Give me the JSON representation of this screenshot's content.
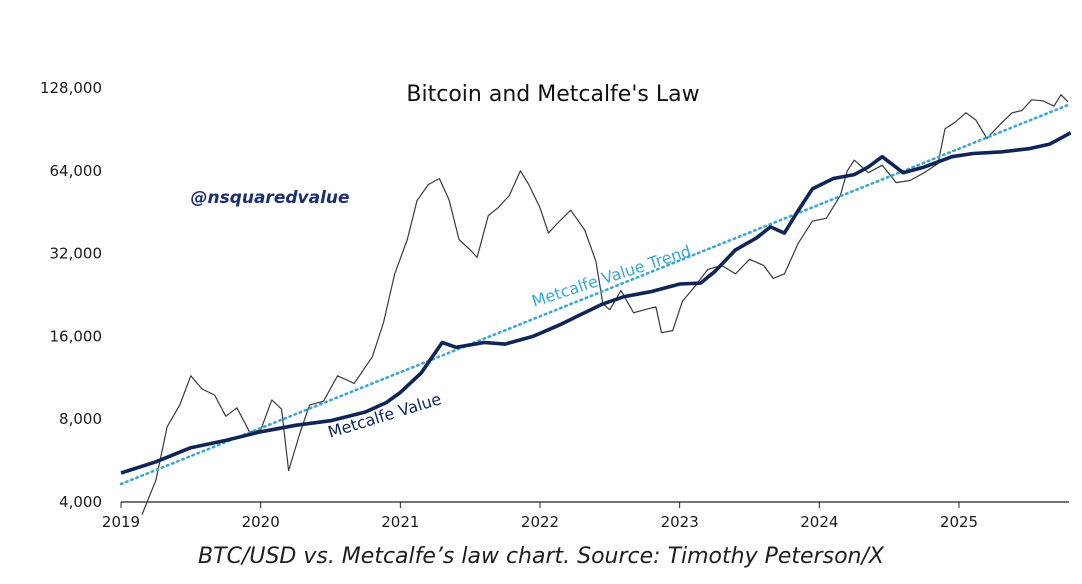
{
  "chart_data": {
    "type": "line",
    "title": "Bitcoin and Metcalfe's Law",
    "watermark": "@nsquaredvalue",
    "caption": "BTC/USD vs. Metcalfe’s law chart. Source: Timothy Peterson/X",
    "y_scale": "log2",
    "ylim": [
      4000,
      140000
    ],
    "yticks": [
      {
        "value": 4000,
        "label": "4,000"
      },
      {
        "value": 8000,
        "label": "8,000"
      },
      {
        "value": 16000,
        "label": "16,000"
      },
      {
        "value": 32000,
        "label": "32,000"
      },
      {
        "value": 64000,
        "label": "64,000"
      },
      {
        "value": 128000,
        "label": "128,000"
      }
    ],
    "xlim": [
      2019.0,
      2025.8
    ],
    "xticks": [
      {
        "value": 2019,
        "label": "2019"
      },
      {
        "value": 2020,
        "label": "2020"
      },
      {
        "value": 2021,
        "label": "2021"
      },
      {
        "value": 2022,
        "label": "2022"
      },
      {
        "value": 2023,
        "label": "2023"
      },
      {
        "value": 2024,
        "label": "2024"
      },
      {
        "value": 2025,
        "label": "2025"
      }
    ],
    "grid": false,
    "colors": {
      "btc": "#3a3a3a",
      "metcalfe": "#0f2558",
      "trend": "#3aa6d8",
      "watermark": "#1c2f6e"
    },
    "series": [
      {
        "key": "btc",
        "style": "thin-line",
        "points": [
          [
            2019.15,
            3600
          ],
          [
            2019.25,
            4800
          ],
          [
            2019.33,
            7500
          ],
          [
            2019.42,
            9000
          ],
          [
            2019.5,
            11500
          ],
          [
            2019.58,
            10300
          ],
          [
            2019.67,
            9800
          ],
          [
            2019.75,
            8200
          ],
          [
            2019.83,
            8800
          ],
          [
            2019.92,
            7200
          ],
          [
            2020.0,
            7300
          ],
          [
            2020.08,
            9400
          ],
          [
            2020.15,
            8700
          ],
          [
            2020.2,
            5200
          ],
          [
            2020.28,
            7100
          ],
          [
            2020.35,
            9000
          ],
          [
            2020.45,
            9300
          ],
          [
            2020.55,
            11500
          ],
          [
            2020.67,
            10800
          ],
          [
            2020.8,
            13500
          ],
          [
            2020.88,
            18000
          ],
          [
            2020.96,
            27000
          ],
          [
            2021.05,
            36000
          ],
          [
            2021.12,
            50000
          ],
          [
            2021.2,
            57000
          ],
          [
            2021.28,
            60000
          ],
          [
            2021.35,
            50000
          ],
          [
            2021.42,
            36000
          ],
          [
            2021.5,
            33000
          ],
          [
            2021.55,
            31000
          ],
          [
            2021.63,
            44000
          ],
          [
            2021.7,
            47000
          ],
          [
            2021.78,
            52000
          ],
          [
            2021.86,
            64000
          ],
          [
            2021.92,
            57000
          ],
          [
            2022.0,
            47000
          ],
          [
            2022.06,
            38000
          ],
          [
            2022.12,
            41000
          ],
          [
            2022.22,
            46000
          ],
          [
            2022.32,
            39000
          ],
          [
            2022.4,
            30000
          ],
          [
            2022.45,
            21000
          ],
          [
            2022.5,
            20000
          ],
          [
            2022.58,
            23500
          ],
          [
            2022.67,
            19500
          ],
          [
            2022.75,
            20000
          ],
          [
            2022.83,
            20500
          ],
          [
            2022.87,
            16500
          ],
          [
            2022.95,
            16800
          ],
          [
            2023.02,
            21500
          ],
          [
            2023.1,
            24000
          ],
          [
            2023.2,
            28000
          ],
          [
            2023.3,
            29000
          ],
          [
            2023.4,
            27000
          ],
          [
            2023.5,
            30500
          ],
          [
            2023.6,
            29000
          ],
          [
            2023.67,
            26000
          ],
          [
            2023.75,
            27000
          ],
          [
            2023.85,
            35000
          ],
          [
            2023.95,
            42000
          ],
          [
            2024.05,
            43000
          ],
          [
            2024.15,
            52000
          ],
          [
            2024.2,
            64000
          ],
          [
            2024.25,
            70000
          ],
          [
            2024.35,
            63000
          ],
          [
            2024.45,
            67000
          ],
          [
            2024.55,
            58000
          ],
          [
            2024.65,
            59000
          ],
          [
            2024.75,
            63000
          ],
          [
            2024.85,
            68000
          ],
          [
            2024.9,
            91000
          ],
          [
            2024.97,
            96000
          ],
          [
            2025.05,
            104000
          ],
          [
            2025.12,
            98000
          ],
          [
            2025.2,
            84000
          ],
          [
            2025.3,
            95000
          ],
          [
            2025.38,
            104000
          ],
          [
            2025.45,
            106000
          ],
          [
            2025.52,
            116000
          ],
          [
            2025.6,
            115000
          ],
          [
            2025.68,
            110000
          ],
          [
            2025.73,
            121000
          ],
          [
            2025.78,
            114000
          ]
        ]
      },
      {
        "key": "metcalfe",
        "name": "Metcalfe Value",
        "style": "thick-line",
        "points": [
          [
            2019.0,
            5100
          ],
          [
            2019.25,
            5600
          ],
          [
            2019.5,
            6300
          ],
          [
            2019.75,
            6700
          ],
          [
            2020.0,
            7200
          ],
          [
            2020.25,
            7600
          ],
          [
            2020.5,
            7900
          ],
          [
            2020.75,
            8500
          ],
          [
            2020.9,
            9200
          ],
          [
            2021.0,
            10000
          ],
          [
            2021.15,
            11800
          ],
          [
            2021.3,
            15200
          ],
          [
            2021.4,
            14600
          ],
          [
            2021.6,
            15200
          ],
          [
            2021.75,
            15000
          ],
          [
            2021.95,
            16000
          ],
          [
            2022.15,
            17700
          ],
          [
            2022.3,
            19300
          ],
          [
            2022.45,
            21000
          ],
          [
            2022.6,
            22300
          ],
          [
            2022.8,
            23300
          ],
          [
            2023.0,
            24800
          ],
          [
            2023.15,
            25000
          ],
          [
            2023.25,
            27500
          ],
          [
            2023.4,
            33000
          ],
          [
            2023.55,
            36500
          ],
          [
            2023.65,
            40000
          ],
          [
            2023.75,
            38000
          ],
          [
            2023.85,
            46000
          ],
          [
            2023.95,
            55000
          ],
          [
            2024.1,
            60000
          ],
          [
            2024.25,
            62000
          ],
          [
            2024.35,
            66000
          ],
          [
            2024.45,
            72000
          ],
          [
            2024.6,
            63000
          ],
          [
            2024.75,
            66000
          ],
          [
            2024.95,
            72000
          ],
          [
            2025.1,
            74000
          ],
          [
            2025.3,
            75000
          ],
          [
            2025.5,
            77000
          ],
          [
            2025.65,
            80000
          ],
          [
            2025.8,
            88000
          ]
        ]
      },
      {
        "key": "trend",
        "name": "Metcalfe Value Trend",
        "style": "dotted-line",
        "points": [
          [
            2019.0,
            4650
          ],
          [
            2025.8,
            112000
          ]
        ]
      }
    ]
  }
}
